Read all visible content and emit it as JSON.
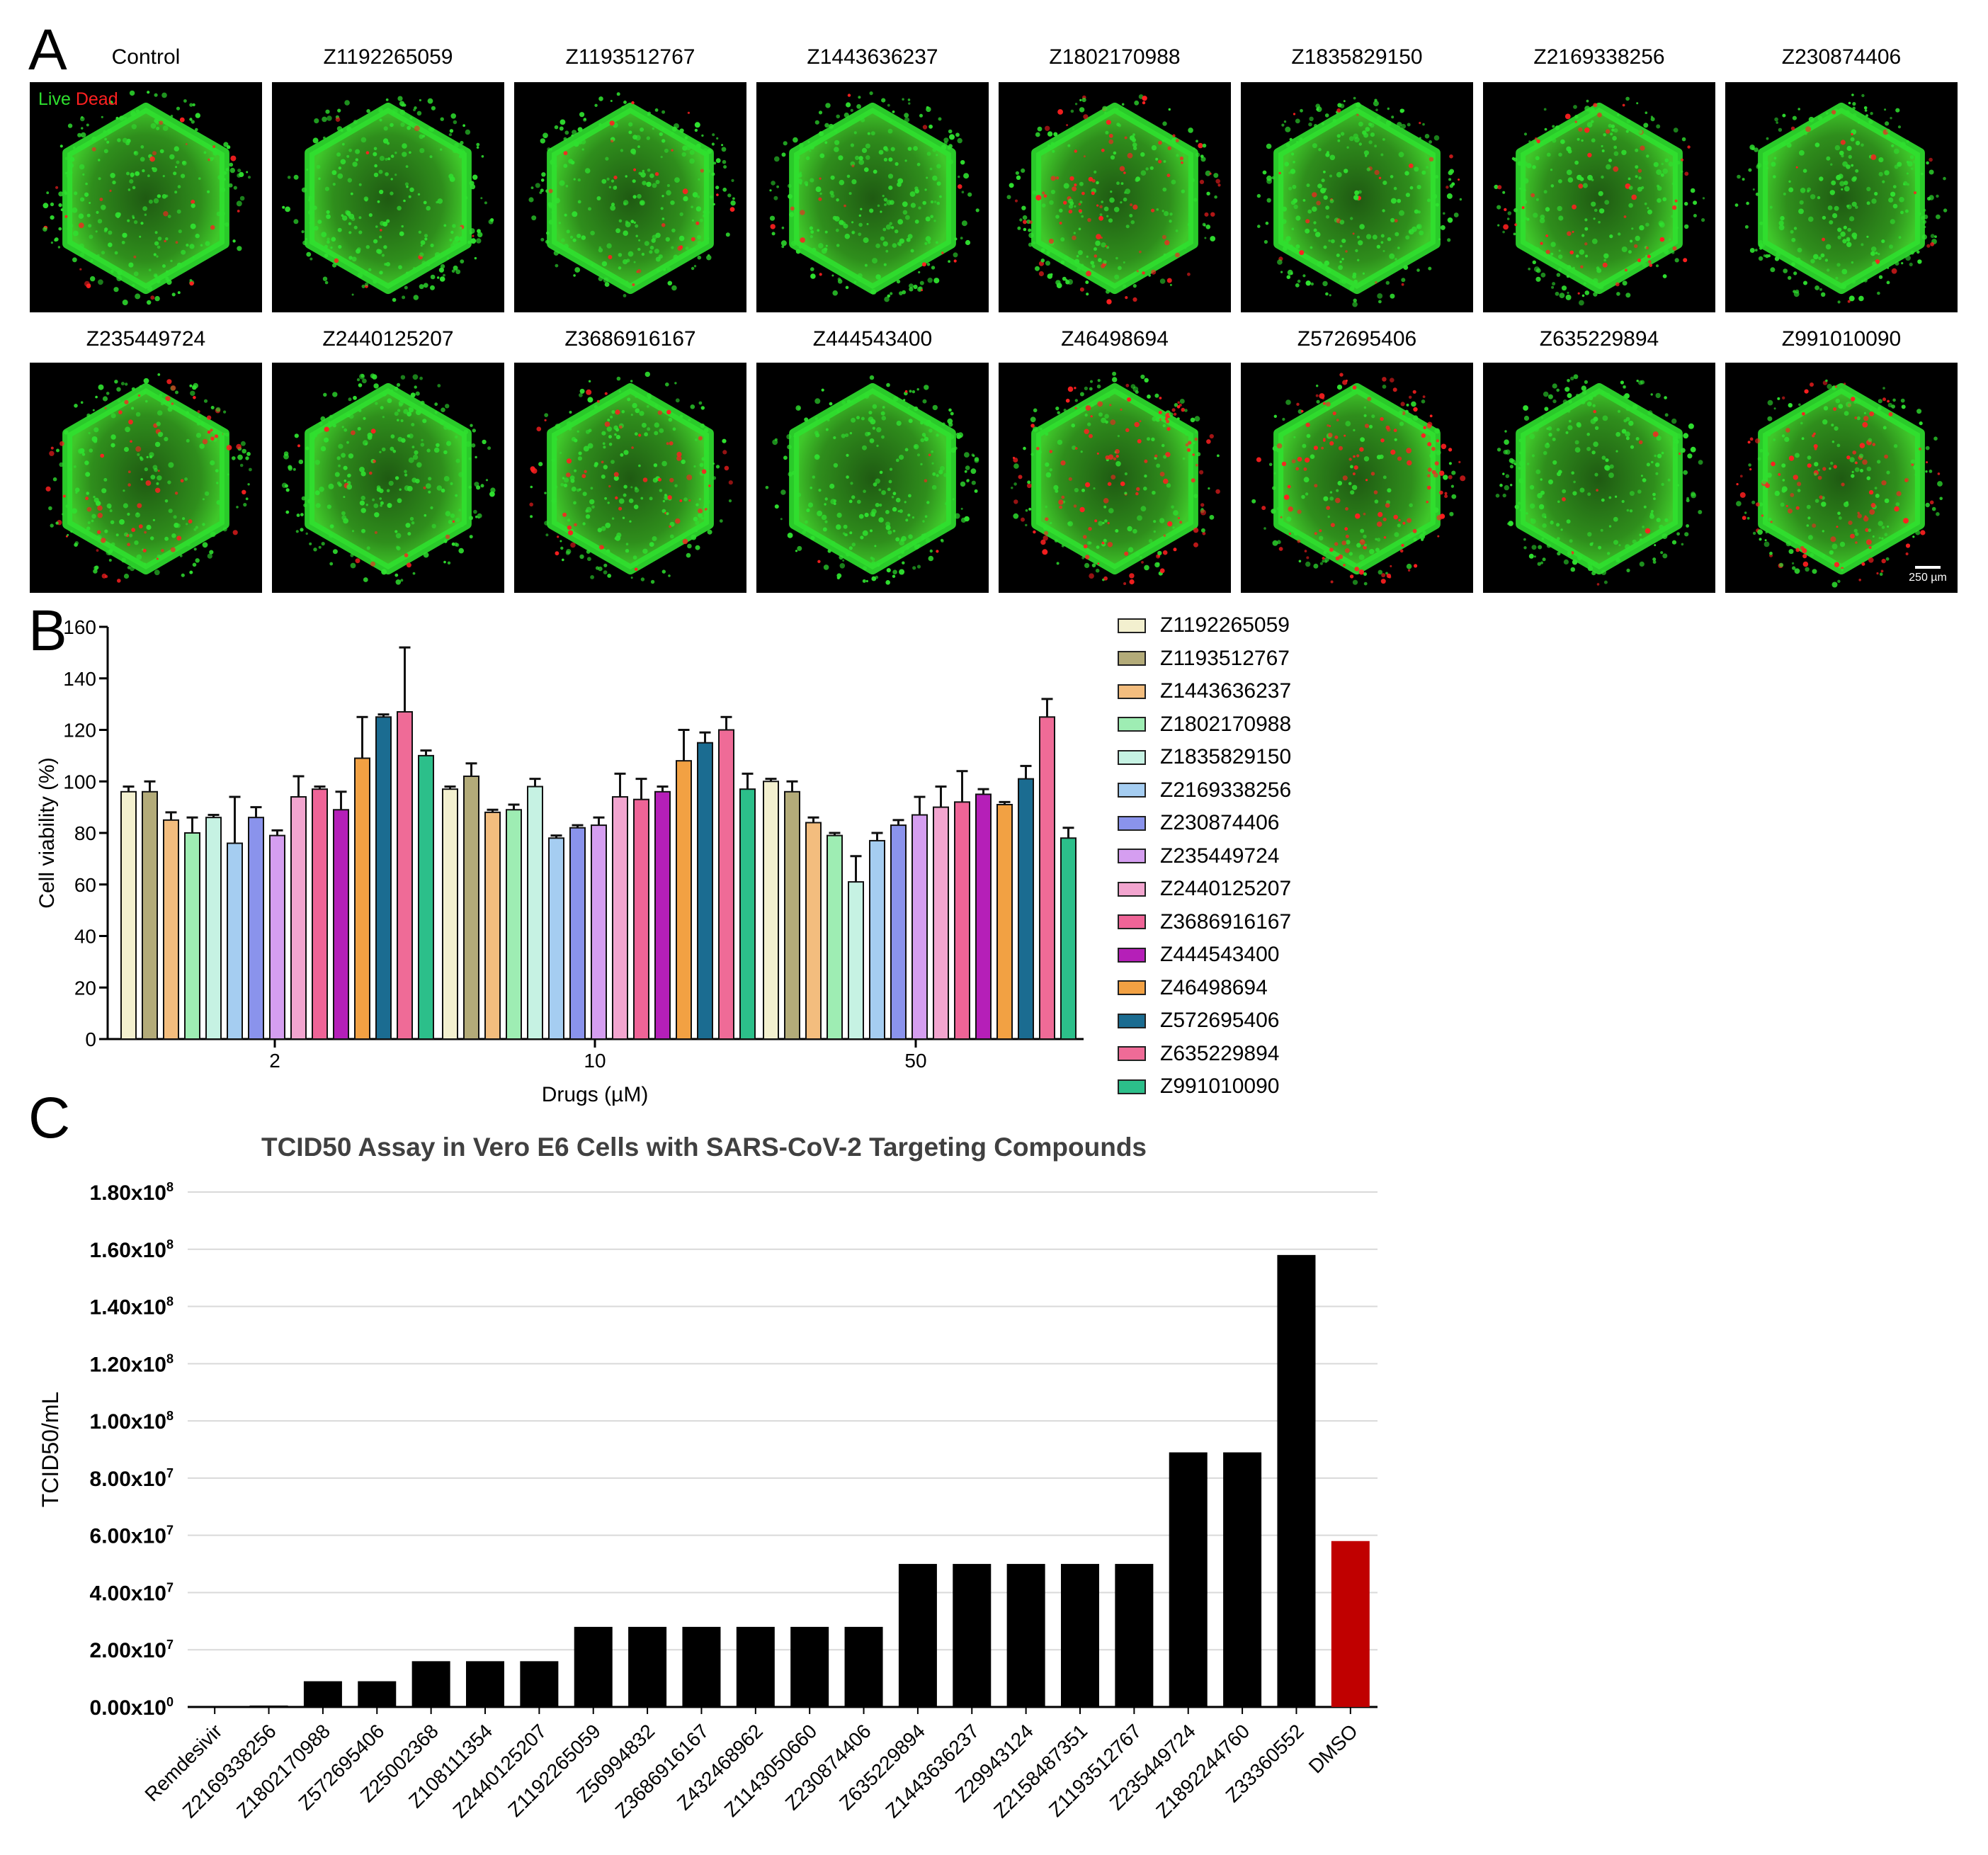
{
  "panel_labels": {
    "a": "A",
    "b": "B",
    "c": "C"
  },
  "microscopy": {
    "live_label": "Live",
    "dead_label": "Dead",
    "live_color": "#2fe02f",
    "dead_color": "#ff2020",
    "scale_label": "250 µm",
    "tiles": [
      {
        "label": "Control",
        "red": 0.1
      },
      {
        "label": "Z1192265059",
        "red": 0.05
      },
      {
        "label": "Z1193512767",
        "red": 0.08
      },
      {
        "label": "Z1443636237",
        "red": 0.06
      },
      {
        "label": "Z1802170988",
        "red": 0.35
      },
      {
        "label": "Z1835829150",
        "red": 0.08
      },
      {
        "label": "Z2169338256",
        "red": 0.22
      },
      {
        "label": "Z230874406",
        "red": 0.06
      },
      {
        "label": "Z235449724",
        "red": 0.3
      },
      {
        "label": "Z2440125207",
        "red": 0.04
      },
      {
        "label": "Z3686916167",
        "red": 0.2
      },
      {
        "label": "Z444543400",
        "red": 0.03
      },
      {
        "label": "Z46498694",
        "red": 0.45
      },
      {
        "label": "Z572695406",
        "red": 0.55
      },
      {
        "label": "Z635229894",
        "red": 0.05
      },
      {
        "label": "Z991010090",
        "red": 0.4
      }
    ]
  },
  "chart_data": [
    {
      "type": "bar",
      "title": "",
      "xlabel": "Drugs (µM)",
      "ylabel": "Cell viability (%)",
      "ylim": [
        0,
        160
      ],
      "yticks": [
        "0",
        "20",
        "40",
        "60",
        "80",
        "100",
        "120",
        "140",
        "160"
      ],
      "categories": [
        "2",
        "10",
        "50"
      ],
      "legend_position": "right",
      "series": [
        {
          "name": "Z1192265059",
          "color": "#f3f0cf",
          "values": [
            96,
            97,
            100
          ],
          "errors": [
            2,
            1,
            1
          ]
        },
        {
          "name": "Z1193512767",
          "color": "#b3ab79",
          "values": [
            96,
            102,
            96
          ],
          "errors": [
            4,
            5,
            4
          ]
        },
        {
          "name": "Z1443636237",
          "color": "#f3bd7e",
          "values": [
            85,
            88,
            84
          ],
          "errors": [
            3,
            1,
            2
          ]
        },
        {
          "name": "Z1802170988",
          "color": "#9eedb3",
          "values": [
            80,
            89,
            79
          ],
          "errors": [
            6,
            2,
            1
          ]
        },
        {
          "name": "Z1835829150",
          "color": "#c6f2e3",
          "values": [
            86,
            98,
            61
          ],
          "errors": [
            1,
            3,
            10
          ]
        },
        {
          "name": "Z2169338256",
          "color": "#a5cdf1",
          "values": [
            76,
            78,
            77
          ],
          "errors": [
            18,
            1,
            3
          ]
        },
        {
          "name": "Z230874406",
          "color": "#8a93ec",
          "values": [
            86,
            82,
            83
          ],
          "errors": [
            4,
            1,
            2
          ]
        },
        {
          "name": "Z235449724",
          "color": "#d59ef0",
          "values": [
            79,
            83,
            87
          ],
          "errors": [
            2,
            3,
            7
          ]
        },
        {
          "name": "Z2440125207",
          "color": "#f2a5cf",
          "values": [
            94,
            94,
            90
          ],
          "errors": [
            8,
            9,
            8
          ]
        },
        {
          "name": "Z3686916167",
          "color": "#ef6497",
          "values": [
            97,
            93,
            92
          ],
          "errors": [
            1,
            8,
            12
          ]
        },
        {
          "name": "Z444543400",
          "color": "#b51fb8",
          "values": [
            89,
            96,
            95
          ],
          "errors": [
            7,
            2,
            2
          ]
        },
        {
          "name": "Z46498694",
          "color": "#f2a143",
          "values": [
            109,
            108,
            91
          ],
          "errors": [
            16,
            12,
            1
          ]
        },
        {
          "name": "Z572695406",
          "color": "#1b6c91",
          "values": [
            125,
            115,
            101
          ],
          "errors": [
            1,
            4,
            5
          ]
        },
        {
          "name": "Z635229894",
          "color": "#ef6b97",
          "values": [
            127,
            120,
            125
          ],
          "errors": [
            25,
            5,
            7
          ]
        },
        {
          "name": "Z991010090",
          "color": "#2cbf8a",
          "values": [
            110,
            97,
            78
          ],
          "errors": [
            2,
            6,
            4
          ]
        }
      ]
    },
    {
      "type": "bar",
      "title": "TCID50 Assay in Vero E6 Cells with SARS-CoV-2 Targeting Compounds",
      "xlabel": "",
      "ylabel": "TCID50/mL",
      "ylim": [
        0,
        180000000
      ],
      "yticks": [
        {
          "mant": "0.00x10",
          "exp": "0"
        },
        {
          "mant": "2.00x10",
          "exp": "7"
        },
        {
          "mant": "4.00x10",
          "exp": "7"
        },
        {
          "mant": "6.00x10",
          "exp": "7"
        },
        {
          "mant": "8.00x10",
          "exp": "7"
        },
        {
          "mant": "1.00x10",
          "exp": "8"
        },
        {
          "mant": "1.20x10",
          "exp": "8"
        },
        {
          "mant": "1.40x10",
          "exp": "8"
        },
        {
          "mant": "1.60x10",
          "exp": "8"
        },
        {
          "mant": "1.80x10",
          "exp": "8"
        }
      ],
      "grid": true,
      "bar_color": "#000000",
      "highlight_color": "#c00000",
      "categories": [
        "Remdesivir",
        "Z2169338256",
        "Z1802170988",
        "Z572695406",
        "Z25002368",
        "Z108111354",
        "Z2440125207",
        "Z1192265059",
        "Z56994832",
        "Z3686916167",
        "Z432468962",
        "Z1143050660",
        "Z230874406",
        "Z635229894",
        "Z1443636237",
        "Z29943124",
        "Z2158487351",
        "Z1193512767",
        "Z235449724",
        "Z1892244760",
        "Z33360552",
        "DMSO"
      ],
      "values": [
        0,
        500000,
        9000000,
        9000000,
        16000000,
        16000000,
        16000000,
        28000000,
        28000000,
        28000000,
        28000000,
        28000000,
        28000000,
        50000000,
        50000000,
        50000000,
        50000000,
        50000000,
        89000000,
        89000000,
        158000000,
        58000000
      ],
      "highlight": [
        "DMSO"
      ]
    }
  ]
}
